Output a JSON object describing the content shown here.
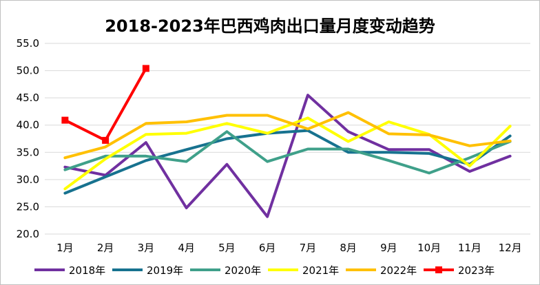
{
  "chart_data": {
    "type": "line",
    "title": "2018-2023年巴西鸡肉出口量月度变动趋势",
    "xlabel": "",
    "ylabel": "",
    "ylim": [
      20.0,
      55.0
    ],
    "yticks": [
      "20.0",
      "25.0",
      "30.0",
      "35.0",
      "40.0",
      "45.0",
      "50.0",
      "55.0"
    ],
    "grid": true,
    "legend_position": "bottom",
    "categories": [
      "1月",
      "2月",
      "3月",
      "4月",
      "5月",
      "6月",
      "7月",
      "8月",
      "9月",
      "10月",
      "11月",
      "12月"
    ],
    "series": [
      {
        "name": "2018年",
        "color": "#7030a0",
        "marker": "none",
        "values": [
          32.3,
          30.8,
          36.8,
          24.8,
          32.8,
          23.2,
          45.5,
          38.8,
          35.5,
          35.5,
          31.5,
          34.3
        ]
      },
      {
        "name": "2019年",
        "color": "#17728f",
        "marker": "none",
        "values": [
          27.5,
          30.5,
          33.5,
          35.5,
          37.5,
          38.5,
          39.0,
          35.0,
          35.0,
          34.8,
          32.8,
          38.0
        ]
      },
      {
        "name": "2020年",
        "color": "#3fa08a",
        "marker": "none",
        "values": [
          31.8,
          34.3,
          34.3,
          33.3,
          38.8,
          33.3,
          35.6,
          35.6,
          33.5,
          31.2,
          34.0,
          37.0
        ]
      },
      {
        "name": "2021年",
        "color": "#ffff00",
        "marker": "none",
        "values": [
          28.3,
          33.8,
          38.3,
          38.5,
          40.3,
          38.5,
          41.3,
          37.0,
          40.6,
          38.3,
          32.5,
          39.8
        ]
      },
      {
        "name": "2022年",
        "color": "#ffc000",
        "marker": "none",
        "values": [
          34.0,
          36.0,
          40.3,
          40.6,
          41.8,
          41.8,
          39.3,
          42.3,
          38.4,
          38.2,
          36.2,
          37.1
        ]
      },
      {
        "name": "2023年",
        "color": "#ff0000",
        "marker": "square",
        "values": [
          40.9,
          37.2,
          50.4,
          null,
          null,
          null,
          null,
          null,
          null,
          null,
          null,
          null
        ]
      }
    ]
  }
}
